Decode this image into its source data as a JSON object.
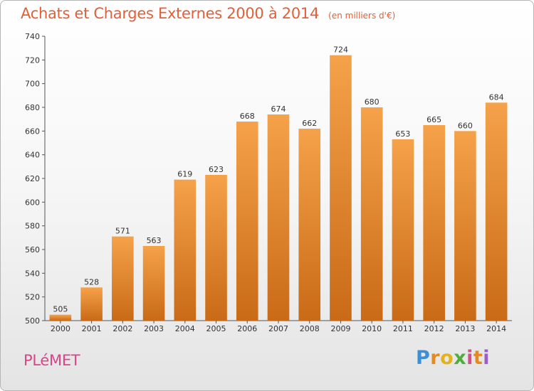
{
  "header": {
    "title": "Achats et Charges Externes 2000 à 2014",
    "subtitle": "(en milliers d'€)"
  },
  "footer": {
    "commune": "PLéMET",
    "brand": "Proxiti"
  },
  "chart_data": {
    "type": "bar",
    "title": "Achats et Charges Externes 2000 à 2014",
    "subtitle": "(en milliers d'€)",
    "xlabel": "",
    "ylabel": "",
    "categories": [
      "2000",
      "2001",
      "2002",
      "2003",
      "2004",
      "2005",
      "2006",
      "2007",
      "2008",
      "2009",
      "2010",
      "2011",
      "2012",
      "2013",
      "2014"
    ],
    "values": [
      505,
      528,
      571,
      563,
      619,
      623,
      668,
      674,
      662,
      724,
      680,
      653,
      665,
      660,
      684
    ],
    "ylim": [
      500,
      740
    ],
    "yticks": [
      500,
      520,
      540,
      560,
      580,
      600,
      620,
      640,
      660,
      680,
      700,
      720,
      740
    ],
    "grid": false,
    "colors": {
      "bar_light": "#f5a24a",
      "bar_dark": "#c96a17"
    }
  }
}
